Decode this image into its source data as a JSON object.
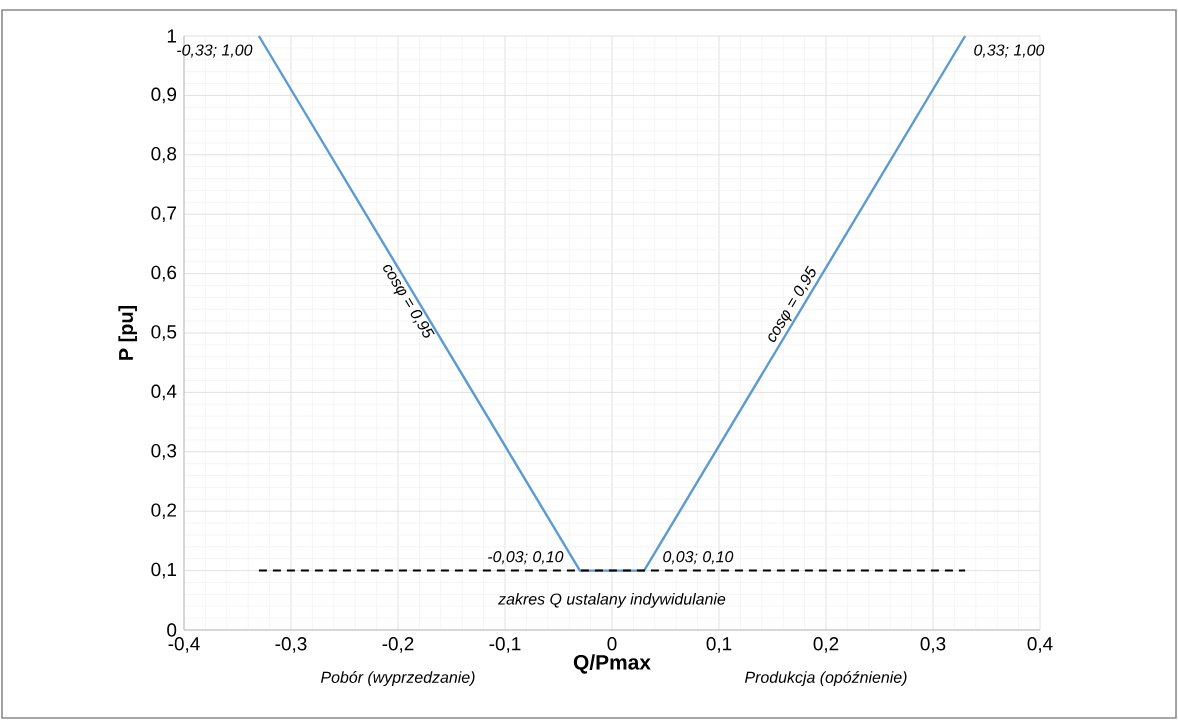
{
  "chart_data": {
    "type": "line",
    "xlabel": "Q/Pmax",
    "ylabel": "P [pu]",
    "xlim": [
      -0.4,
      0.4
    ],
    "ylim": [
      0,
      1
    ],
    "xticks": [
      {
        "value": -0.4,
        "label": "-0,4"
      },
      {
        "value": -0.3,
        "label": "-0,3"
      },
      {
        "value": -0.2,
        "label": "-0,2"
      },
      {
        "value": -0.1,
        "label": "-0,1"
      },
      0,
      {
        "value": 0.1,
        "label": "0,1"
      },
      {
        "value": 0.2,
        "label": "0,2"
      },
      {
        "value": 0.3,
        "label": "0,3"
      },
      {
        "value": 0.4,
        "label": "0,4"
      }
    ],
    "yticks": [
      0,
      {
        "value": 0.1,
        "label": "0,1"
      },
      {
        "value": 0.2,
        "label": "0,2"
      },
      {
        "value": 0.3,
        "label": "0,3"
      },
      {
        "value": 0.4,
        "label": "0,4"
      },
      {
        "value": 0.5,
        "label": "0,5"
      },
      {
        "value": 0.6,
        "label": "0,6"
      },
      {
        "value": 0.7,
        "label": "0,7"
      },
      {
        "value": 0.8,
        "label": "0,8"
      },
      {
        "value": 0.9,
        "label": "0,9"
      },
      1
    ],
    "grid": true,
    "marker": "none",
    "series": [
      {
        "color": "#5b9bd5",
        "line_style": "solid",
        "x": [
          -0.33,
          -0.03,
          0.03,
          0.33
        ],
        "values": [
          1.0,
          0.1,
          0.1,
          1.0
        ]
      },
      {
        "color": "#000000",
        "line_style": "dashed",
        "x": [
          -0.33,
          0.33
        ],
        "values": [
          0.1,
          0.1
        ]
      }
    ],
    "annotations": [
      {
        "text": "-0,33; 1,00",
        "x": -0.33,
        "y": 1.0
      },
      {
        "text": "0,33; 1,00",
        "x": 0.33,
        "y": 1.0
      },
      {
        "text": "-0,03; 0,10",
        "x": -0.03,
        "y": 0.1
      },
      {
        "text": "0,03; 0,10",
        "x": 0.03,
        "y": 0.1
      },
      {
        "text": "cosφ = 0,95",
        "x": -0.18,
        "y": 0.55
      },
      {
        "text": "cosφ = 0,95",
        "x": 0.18,
        "y": 0.55
      },
      {
        "text": "zakres Q ustalany indywidulanie",
        "x": 0,
        "y": 0.1
      },
      "Pobór (wyprzedzanie)",
      "Produkcja (opóźnienie)"
    ]
  }
}
